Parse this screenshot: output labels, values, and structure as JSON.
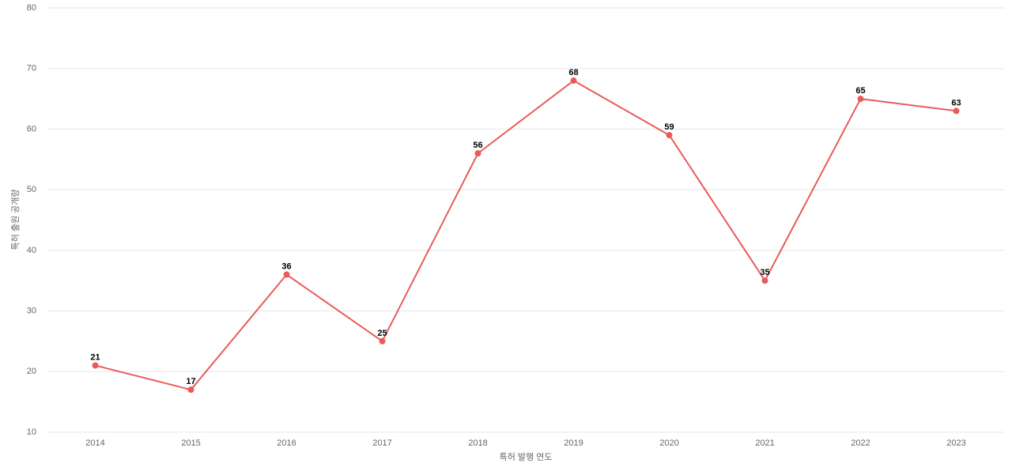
{
  "chart_data": {
    "type": "line",
    "x_label": "특허 발행 연도",
    "y_label": "특허 출원 공개량",
    "categories": [
      "2014",
      "2015",
      "2016",
      "2017",
      "2018",
      "2019",
      "2020",
      "2021",
      "2022",
      "2023"
    ],
    "values": [
      21,
      17,
      36,
      25,
      56,
      68,
      59,
      35,
      65,
      63
    ],
    "color": "#e85b5b",
    "ylim": [
      10,
      80
    ],
    "yticks": [
      10,
      20,
      30,
      40,
      50,
      60,
      70,
      80
    ],
    "grid": true
  }
}
